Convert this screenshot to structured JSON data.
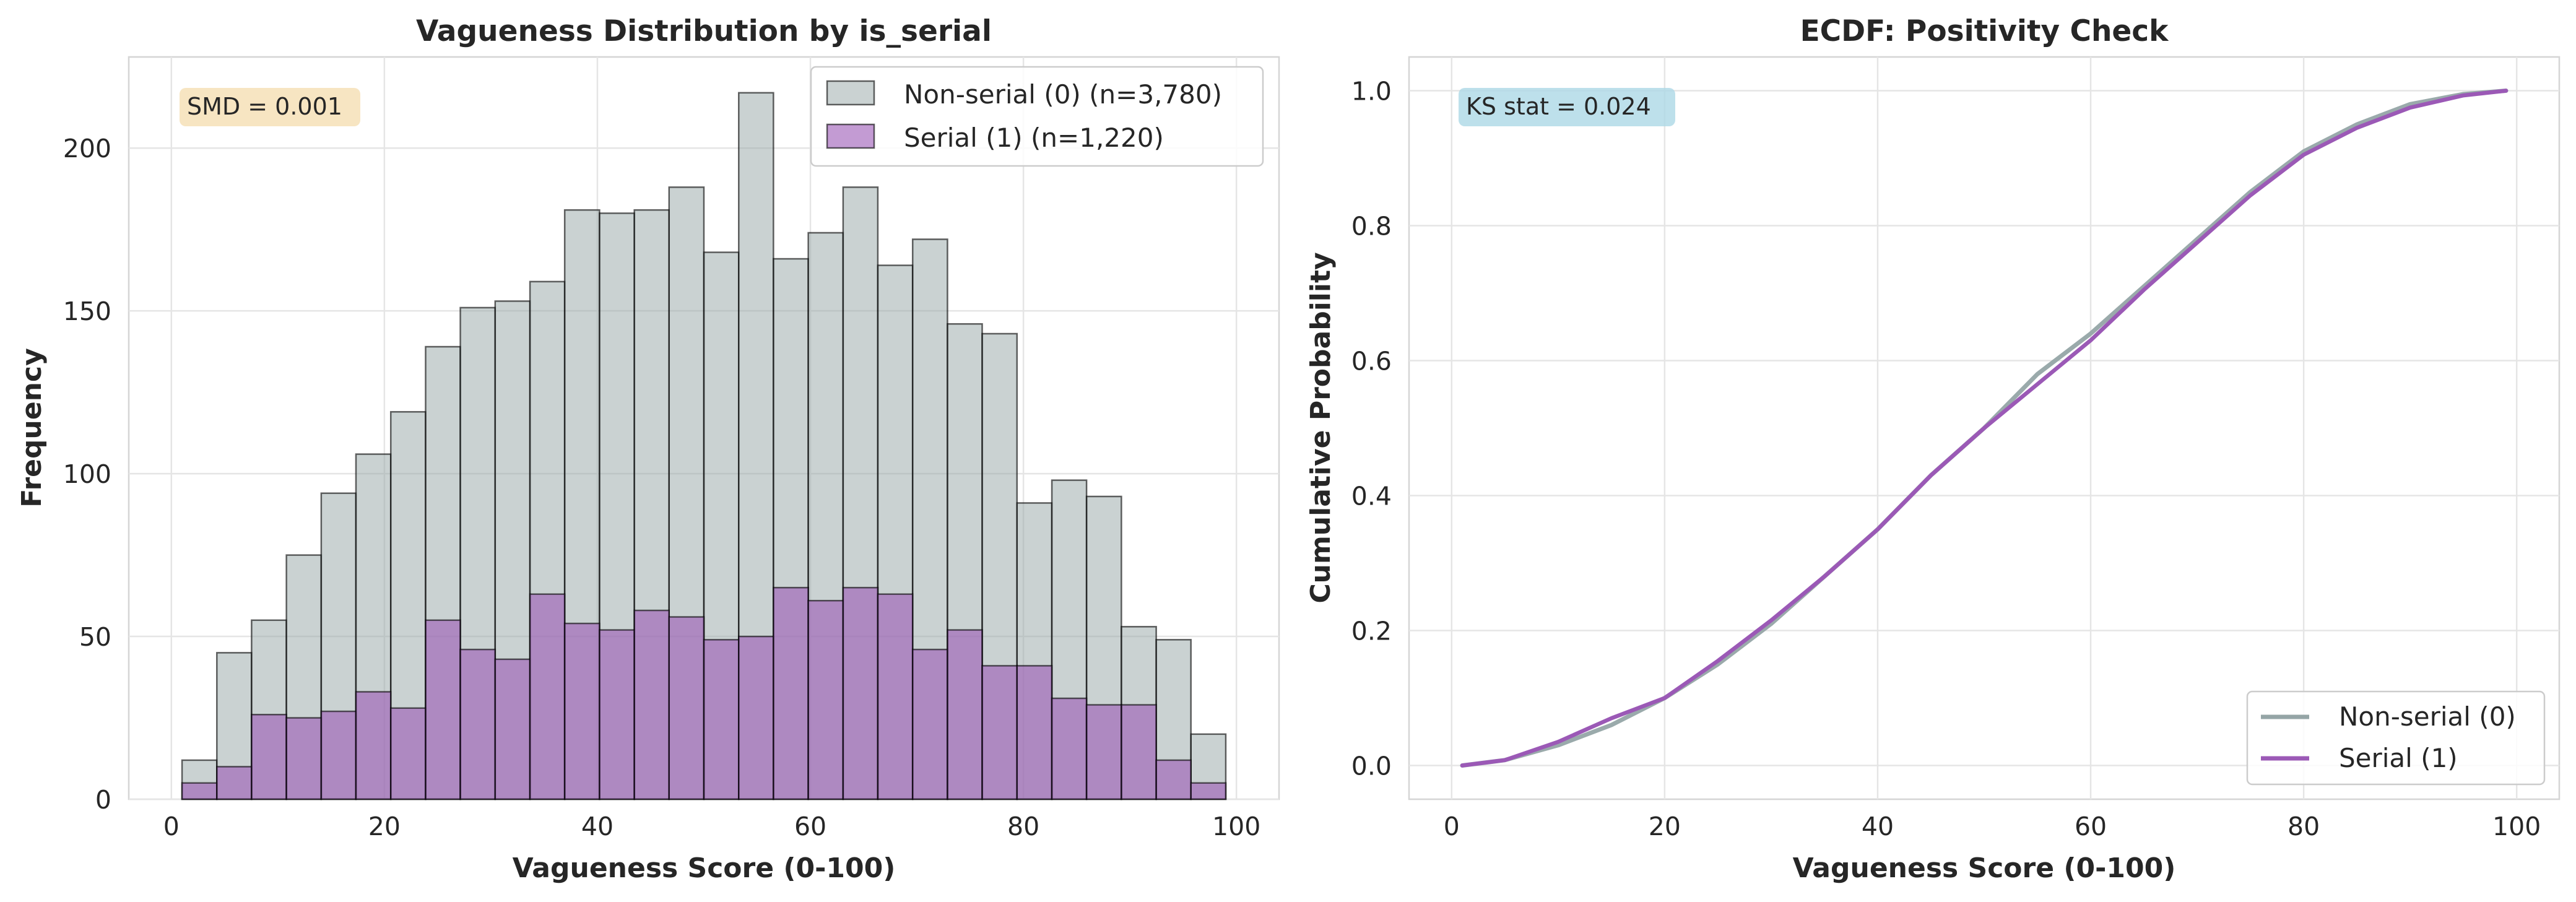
{
  "chart_data": [
    {
      "type": "histogram",
      "title": "Vagueness Distribution by is_serial",
      "xlabel": "Vagueness Score (0-100)",
      "ylabel": "Frequency",
      "xlim": [
        -4,
        104
      ],
      "ylim": [
        0,
        228
      ],
      "xticks": [
        0,
        20,
        40,
        60,
        80,
        100
      ],
      "yticks": [
        0,
        50,
        100,
        150,
        200
      ],
      "bin_edges": [
        1,
        4.27,
        7.53,
        10.8,
        14.07,
        17.33,
        20.6,
        23.87,
        27.13,
        30.4,
        33.67,
        36.93,
        40.2,
        43.47,
        46.73,
        50,
        53.27,
        56.53,
        59.8,
        63.07,
        66.33,
        69.6,
        72.87,
        76.13,
        79.4,
        82.67,
        85.93,
        89.2,
        92.47,
        95.73,
        99
      ],
      "series": [
        {
          "name": "Non-serial (0) (n=3,780)",
          "color": "#95a5a6",
          "values": [
            12,
            45,
            55,
            75,
            94,
            106,
            119,
            139,
            151,
            153,
            159,
            181,
            180,
            181,
            188,
            168,
            217,
            166,
            174,
            188,
            164,
            172,
            146,
            143,
            91,
            98,
            93,
            53,
            49,
            20
          ]
        },
        {
          "name": "Serial (1) (n=1,220)",
          "color": "#9b59b6",
          "values": [
            5,
            10,
            26,
            25,
            27,
            33,
            28,
            55,
            46,
            43,
            63,
            54,
            52,
            58,
            56,
            49,
            50,
            65,
            61,
            65,
            63,
            46,
            52,
            41,
            41,
            31,
            29,
            29,
            12,
            5
          ]
        }
      ],
      "annotation": "SMD = 0.001",
      "annotation_color": "#f5deb3",
      "legend": "top-right",
      "grid": true
    },
    {
      "type": "line",
      "title": "ECDF: Positivity Check",
      "xlabel": "Vagueness Score (0-100)",
      "ylabel": "Cumulative Probability",
      "xlim": [
        -4,
        104
      ],
      "ylim": [
        -0.05,
        1.05
      ],
      "xticks": [
        0,
        20,
        40,
        60,
        80,
        100
      ],
      "yticks": [
        "0.0",
        "0.2",
        "0.4",
        "0.6",
        "0.8",
        "1.0"
      ],
      "series": [
        {
          "name": "Non-serial (0)",
          "color": "#95a5a6",
          "x": [
            1,
            5,
            10,
            15,
            20,
            25,
            30,
            35,
            40,
            45,
            50,
            55,
            60,
            65,
            70,
            75,
            80,
            85,
            90,
            95,
            99
          ],
          "y": [
            0,
            0.008,
            0.03,
            0.06,
            0.1,
            0.15,
            0.21,
            0.28,
            0.35,
            0.43,
            0.5,
            0.58,
            0.64,
            0.71,
            0.78,
            0.85,
            0.91,
            0.95,
            0.98,
            0.995,
            1.0
          ]
        },
        {
          "name": "Serial (1)",
          "color": "#9b59b6",
          "x": [
            1,
            5,
            10,
            15,
            20,
            25,
            30,
            35,
            40,
            45,
            50,
            55,
            60,
            65,
            70,
            75,
            80,
            85,
            90,
            95,
            99
          ],
          "y": [
            0,
            0.008,
            0.035,
            0.07,
            0.1,
            0.155,
            0.215,
            0.28,
            0.35,
            0.43,
            0.5,
            0.565,
            0.63,
            0.705,
            0.775,
            0.845,
            0.905,
            0.945,
            0.975,
            0.993,
            1.0
          ]
        }
      ],
      "annotation": "KS stat = 0.024",
      "annotation_color": "#add8e6",
      "legend": "bottom-right",
      "grid": true
    }
  ]
}
